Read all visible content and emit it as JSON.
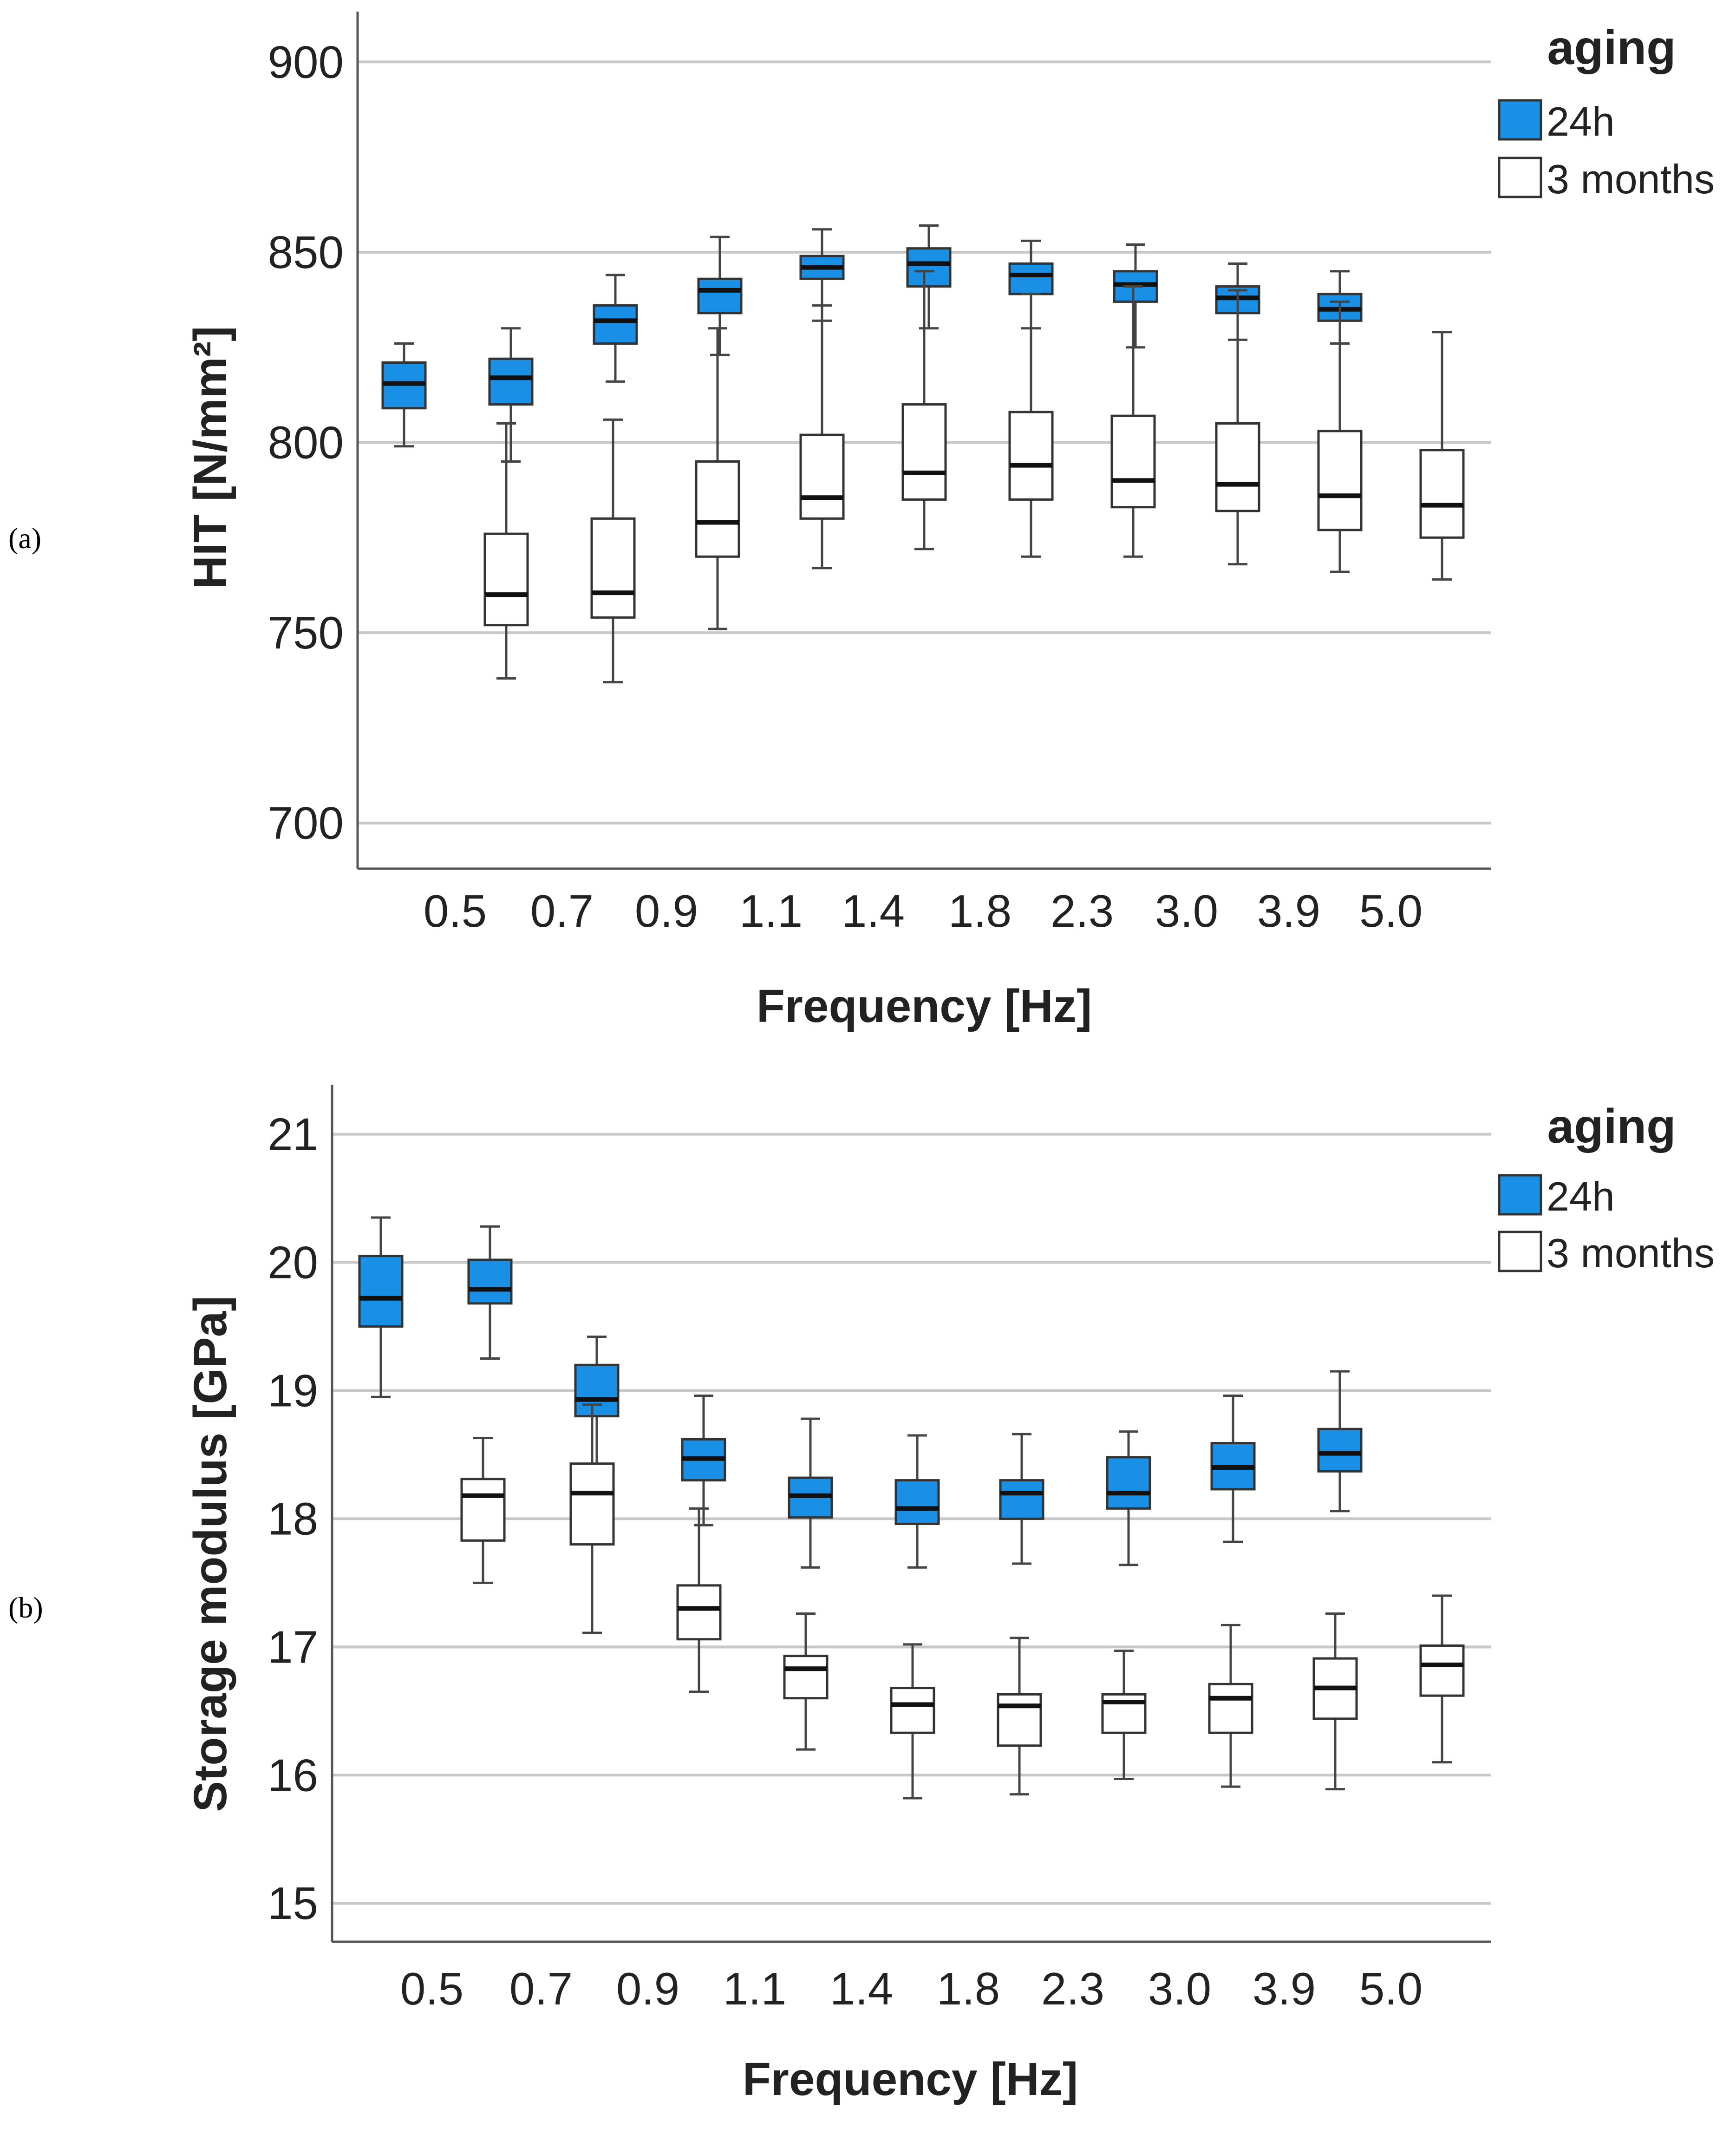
{
  "colors": {
    "series_24h": "#1a8fe6",
    "series_3m": "#ffffff"
  },
  "chart_data": [
    {
      "type": "boxplot",
      "panel_label": "(a)",
      "xlabel": "Frequency  [Hz]",
      "ylabel": "HIT [N/mm²]",
      "ylim": [
        688,
        912
      ],
      "yticks": [
        700,
        750,
        800,
        850,
        900
      ],
      "categories": [
        "0.5",
        "0.7",
        "0.9",
        "1.1",
        "1.4",
        "1.8",
        "2.3",
        "3.0",
        "3.9",
        "5.0"
      ],
      "legend_title": "aging",
      "series": [
        {
          "name": "24h",
          "boxes": [
            {
              "min": 799,
              "q1": 809,
              "median": 815.5,
              "q3": 821,
              "max": 826
            },
            {
              "min": 795,
              "q1": 810,
              "median": 817,
              "q3": 822,
              "max": 830
            },
            {
              "min": 816,
              "q1": 826,
              "median": 832,
              "q3": 836,
              "max": 844
            },
            {
              "min": 823,
              "q1": 834,
              "median": 840,
              "q3": 843,
              "max": 854
            },
            {
              "min": 832,
              "q1": 843,
              "median": 846,
              "q3": 849,
              "max": 856
            },
            {
              "min": 830,
              "q1": 841,
              "median": 847,
              "q3": 851,
              "max": 857
            },
            {
              "min": 830,
              "q1": 839,
              "median": 844,
              "q3": 847,
              "max": 853
            },
            {
              "min": 825,
              "q1": 837,
              "median": 841.5,
              "q3": 845,
              "max": 852
            },
            {
              "min": 827,
              "q1": 834,
              "median": 838,
              "q3": 841,
              "max": 847
            },
            {
              "min": 826,
              "q1": 832,
              "median": 835,
              "q3": 839,
              "max": 845
            }
          ]
        },
        {
          "name": "3 months",
          "boxes": [
            {
              "min": 738,
              "q1": 752,
              "median": 760,
              "q3": 776,
              "max": 805
            },
            {
              "min": 737,
              "q1": 754,
              "median": 760.5,
              "q3": 780,
              "max": 806
            },
            {
              "min": 751,
              "q1": 770,
              "median": 779,
              "q3": 795,
              "max": 830
            },
            {
              "min": 767,
              "q1": 780,
              "median": 785.5,
              "q3": 802,
              "max": 836
            },
            {
              "min": 772,
              "q1": 785,
              "median": 792,
              "q3": 810,
              "max": 845
            },
            {
              "min": 770,
              "q1": 785,
              "median": 794,
              "q3": 808,
              "max": 839
            },
            {
              "min": 770,
              "q1": 783,
              "median": 790,
              "q3": 807,
              "max": 841
            },
            {
              "min": 768,
              "q1": 782,
              "median": 789,
              "q3": 805,
              "max": 840
            },
            {
              "min": 766,
              "q1": 777,
              "median": 786,
              "q3": 803,
              "max": 837
            },
            {
              "min": 764,
              "q1": 775,
              "median": 783.5,
              "q3": 798,
              "max": 829
            }
          ]
        }
      ]
    },
    {
      "type": "boxplot",
      "panel_label": "(b)",
      "xlabel": "Frequency  [Hz]",
      "ylabel": "Storage modulus [GPa]",
      "ylim": [
        14.7,
        21.35
      ],
      "yticks": [
        15,
        16,
        17,
        18,
        19,
        20,
        21
      ],
      "categories": [
        "0.5",
        "0.7",
        "0.9",
        "1.1",
        "1.4",
        "1.8",
        "2.3",
        "3.0",
        "3.9",
        "5.0"
      ],
      "legend_title": "aging",
      "series": [
        {
          "name": "24h",
          "boxes": [
            {
              "min": 18.95,
              "q1": 19.5,
              "median": 19.72,
              "q3": 20.05,
              "max": 20.35
            },
            {
              "min": 19.25,
              "q1": 19.68,
              "median": 19.79,
              "q3": 20.02,
              "max": 20.28
            },
            {
              "min": 18.3,
              "q1": 18.8,
              "median": 18.93,
              "q3": 19.2,
              "max": 19.42
            },
            {
              "min": 17.95,
              "q1": 18.3,
              "median": 18.47,
              "q3": 18.62,
              "max": 18.96
            },
            {
              "min": 17.62,
              "q1": 18.01,
              "median": 18.18,
              "q3": 18.32,
              "max": 18.78
            },
            {
              "min": 17.62,
              "q1": 17.96,
              "median": 18.08,
              "q3": 18.3,
              "max": 18.65
            },
            {
              "min": 17.65,
              "q1": 18.0,
              "median": 18.2,
              "q3": 18.3,
              "max": 18.66
            },
            {
              "min": 17.64,
              "q1": 18.08,
              "median": 18.2,
              "q3": 18.48,
              "max": 18.68
            },
            {
              "min": 17.82,
              "q1": 18.23,
              "median": 18.4,
              "q3": 18.59,
              "max": 18.96
            },
            {
              "min": 18.06,
              "q1": 18.37,
              "median": 18.51,
              "q3": 18.7,
              "max": 19.15
            }
          ]
        },
        {
          "name": "3 months",
          "boxes": [
            {
              "min": 17.5,
              "q1": 17.83,
              "median": 18.18,
              "q3": 18.31,
              "max": 18.63
            },
            {
              "min": 17.11,
              "q1": 17.8,
              "median": 18.2,
              "q3": 18.43,
              "max": 18.89
            },
            {
              "min": 16.65,
              "q1": 17.06,
              "median": 17.3,
              "q3": 17.48,
              "max": 18.08
            },
            {
              "min": 16.2,
              "q1": 16.6,
              "median": 16.83,
              "q3": 16.93,
              "max": 17.26
            },
            {
              "min": 15.82,
              "q1": 16.33,
              "median": 16.55,
              "q3": 16.68,
              "max": 17.02
            },
            {
              "min": 15.85,
              "q1": 16.23,
              "median": 16.54,
              "q3": 16.63,
              "max": 17.07
            },
            {
              "min": 15.97,
              "q1": 16.33,
              "median": 16.57,
              "q3": 16.63,
              "max": 16.97
            },
            {
              "min": 15.91,
              "q1": 16.33,
              "median": 16.6,
              "q3": 16.71,
              "max": 17.17
            },
            {
              "min": 15.89,
              "q1": 16.44,
              "median": 16.68,
              "q3": 16.91,
              "max": 17.26
            },
            {
              "min": 16.1,
              "q1": 16.62,
              "median": 16.86,
              "q3": 17.01,
              "max": 17.4
            }
          ]
        }
      ]
    }
  ]
}
